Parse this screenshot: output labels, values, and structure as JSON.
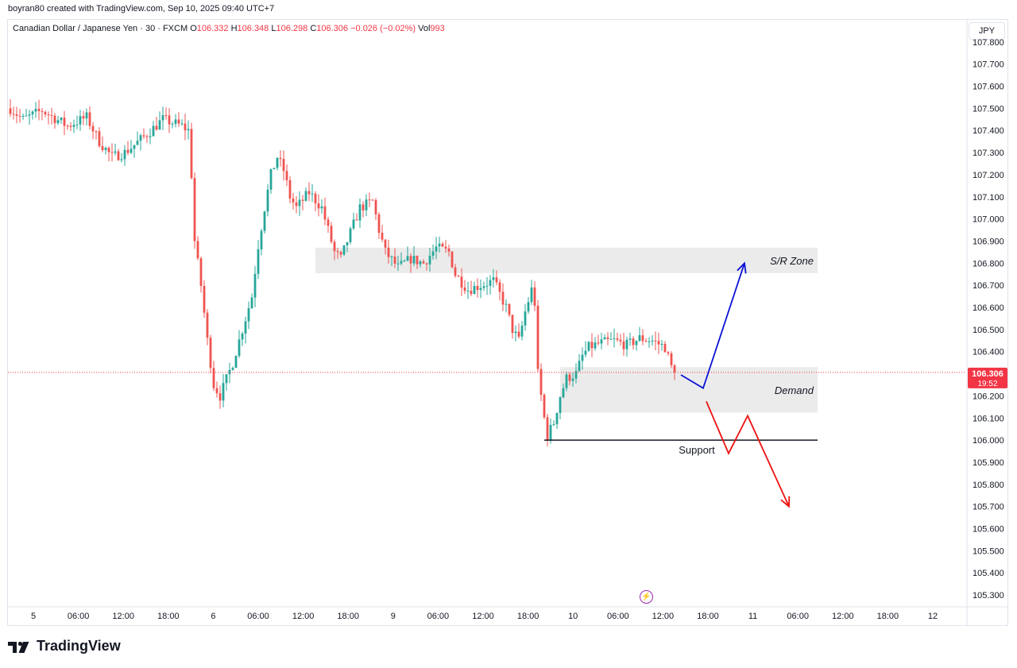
{
  "caption": "boyran80 created with TradingView.com, Sep 10, 2025 09:40 UTC+7",
  "symbol": {
    "name": "Canadian Dollar / Japanese Yen · 30 · FXCM",
    "o_label": "O",
    "o_value": "106.332",
    "h_label": "H",
    "h_value": "106.348",
    "l_label": "L",
    "l_value": "106.298",
    "c_label": "C",
    "c_value": "106.306",
    "change": "−0.026 (−0.02%)",
    "vol_label": "Vol",
    "vol_value": "993"
  },
  "currency_button": "JPY",
  "price_tag": {
    "price": "106.306",
    "countdown": "19:52",
    "color": "#f23645"
  },
  "brand": "TradingView",
  "colors": {
    "up": "#26a69a",
    "down": "#ef5350",
    "zone": "#ebebeb",
    "blue_arrow": "#0b12d6",
    "red_arrow": "#ee1111"
  },
  "chart_data": {
    "type": "candlestick",
    "ylim": [
      105.25,
      107.9
    ],
    "y_ticks": [
      "107.800",
      "107.700",
      "107.600",
      "107.500",
      "107.400",
      "107.300",
      "107.200",
      "107.100",
      "107.000",
      "106.900",
      "106.800",
      "106.700",
      "106.600",
      "106.500",
      "106.400",
      "106.300",
      "106.200",
      "106.100",
      "106.000",
      "105.900",
      "105.800",
      "105.700",
      "105.600",
      "105.500",
      "105.400",
      "105.300"
    ],
    "x_ticks": [
      "5",
      "06:00",
      "12:00",
      "18:00",
      "6",
      "06:00",
      "12:00",
      "18:00",
      "9",
      "06:00",
      "12:00",
      "18:00",
      "10",
      "06:00",
      "12:00",
      "18:00",
      "11",
      "06:00",
      "12:00",
      "18:00",
      "12"
    ],
    "current_price": 106.306,
    "path": [
      [
        0,
        107.5
      ],
      [
        4,
        107.45
      ],
      [
        10,
        107.49
      ],
      [
        18,
        107.42
      ],
      [
        24,
        107.46
      ],
      [
        28,
        107.35
      ],
      [
        32,
        107.28
      ],
      [
        36,
        107.3
      ],
      [
        42,
        107.37
      ],
      [
        48,
        107.45
      ],
      [
        54,
        107.42
      ],
      [
        56,
        107.4
      ],
      [
        57,
        107.2
      ],
      [
        58,
        106.9
      ],
      [
        60,
        106.7
      ],
      [
        62,
        106.45
      ],
      [
        64,
        106.25
      ],
      [
        66,
        106.2
      ],
      [
        70,
        106.35
      ],
      [
        74,
        106.55
      ],
      [
        76,
        106.65
      ],
      [
        78,
        106.88
      ],
      [
        80,
        107.05
      ],
      [
        82,
        107.2
      ],
      [
        84,
        107.28
      ],
      [
        86,
        107.22
      ],
      [
        88,
        107.1
      ],
      [
        90,
        107.05
      ],
      [
        94,
        107.12
      ],
      [
        98,
        107.05
      ],
      [
        100,
        106.95
      ],
      [
        102,
        106.85
      ],
      [
        104,
        106.82
      ],
      [
        106,
        106.9
      ],
      [
        110,
        107.05
      ],
      [
        114,
        107.08
      ],
      [
        116,
        106.95
      ],
      [
        118,
        106.85
      ],
      [
        122,
        106.78
      ],
      [
        126,
        106.82
      ],
      [
        130,
        106.8
      ],
      [
        134,
        106.87
      ],
      [
        138,
        106.85
      ],
      [
        140,
        106.75
      ],
      [
        144,
        106.68
      ],
      [
        148,
        106.7
      ],
      [
        152,
        106.72
      ],
      [
        156,
        106.6
      ],
      [
        158,
        106.5
      ],
      [
        160,
        106.45
      ],
      [
        162,
        106.58
      ],
      [
        164,
        106.68
      ],
      [
        165,
        106.62
      ],
      [
        166,
        106.3
      ],
      [
        168,
        106.1
      ],
      [
        169,
        106.02
      ],
      [
        171,
        106.08
      ],
      [
        173,
        106.2
      ],
      [
        175,
        106.28
      ],
      [
        178,
        106.3
      ],
      [
        180,
        106.38
      ],
      [
        182,
        106.42
      ],
      [
        186,
        106.44
      ],
      [
        190,
        106.45
      ],
      [
        194,
        106.43
      ],
      [
        198,
        106.46
      ],
      [
        202,
        106.45
      ],
      [
        206,
        106.42
      ],
      [
        208,
        106.33
      ],
      [
        209,
        106.306
      ]
    ],
    "zones": [
      {
        "label": "S/R Zone",
        "x0": 96,
        "x1": 254,
        "y0": 106.755,
        "y1": 106.87
      },
      {
        "label": "Demand",
        "x0": 173,
        "x1": 254,
        "y0": 106.125,
        "y1": 106.33
      }
    ],
    "support": {
      "label": "Support",
      "x0": 168,
      "x1": 254,
      "y": 106.0
    },
    "projections": [
      {
        "name": "bullish",
        "points": [
          [
            211,
            106.295
          ],
          [
            218,
            106.235
          ],
          [
            231,
            106.8
          ]
        ]
      },
      {
        "name": "bearish",
        "points": [
          [
            219,
            106.175
          ],
          [
            226,
            105.94
          ],
          [
            232,
            106.11
          ],
          [
            245,
            105.7
          ]
        ]
      }
    ]
  }
}
